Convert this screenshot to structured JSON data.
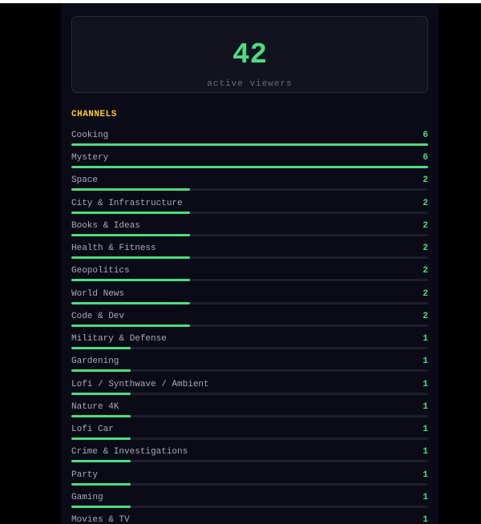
{
  "stats": {
    "viewer_count": "42",
    "viewer_label": "active viewers"
  },
  "channels_heading": "CHANNELS",
  "max_count": 6,
  "channels": [
    {
      "name": "Cooking",
      "count": 6
    },
    {
      "name": "Mystery",
      "count": 6
    },
    {
      "name": "Space",
      "count": 2
    },
    {
      "name": "City & Infrastructure",
      "count": 2
    },
    {
      "name": "Books & Ideas",
      "count": 2
    },
    {
      "name": "Health & Fitness",
      "count": 2
    },
    {
      "name": "Geopolitics",
      "count": 2
    },
    {
      "name": "World News",
      "count": 2
    },
    {
      "name": "Code & Dev",
      "count": 2
    },
    {
      "name": "Military & Defense",
      "count": 1
    },
    {
      "name": "Gardening",
      "count": 1
    },
    {
      "name": "Lofi / Synthwave / Ambient",
      "count": 1
    },
    {
      "name": "Nature 4K",
      "count": 1
    },
    {
      "name": "Lofi Car",
      "count": 1
    },
    {
      "name": "Crime & Investigations",
      "count": 1
    },
    {
      "name": "Party",
      "count": 1
    },
    {
      "name": "Gaming",
      "count": 1
    },
    {
      "name": "Movies & TV",
      "count": 1
    }
  ],
  "colors": {
    "accent": "#4ade80",
    "heading": "#facc15",
    "background": "#0b0b18"
  }
}
